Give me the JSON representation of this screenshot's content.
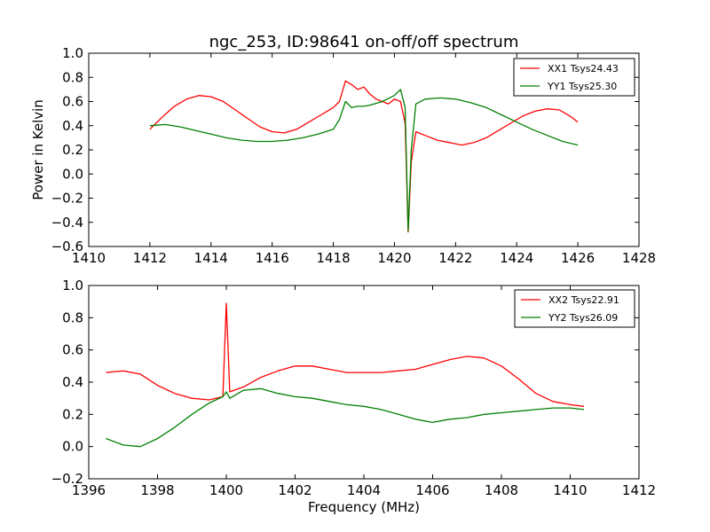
{
  "figure": {
    "title": "ngc_253, ID:98641 on-off/off spectrum",
    "ylabel": "Power in Kelvin",
    "xlabel": "Frequency (MHz)"
  },
  "chart_data": [
    {
      "type": "line",
      "title": "ngc_253, ID:98641 on-off/off spectrum",
      "xlabel": "",
      "ylabel": "Power in Kelvin",
      "xlim": [
        1410,
        1428
      ],
      "ylim": [
        -0.6,
        1.0
      ],
      "xticks": [
        "1410",
        "1412",
        "1414",
        "1416",
        "1418",
        "1420",
        "1422",
        "1424",
        "1426",
        "1428"
      ],
      "yticks": [
        "−0.6",
        "−0.4",
        "−0.2",
        "0.0",
        "0.2",
        "0.4",
        "0.6",
        "0.8",
        "1.0"
      ],
      "grid": false,
      "legend_position": "top-right",
      "series": [
        {
          "name": "XX1 Tsys24.43",
          "color": "#ff0000",
          "x": [
            1412.0,
            1412.4,
            1412.8,
            1413.2,
            1413.6,
            1414.0,
            1414.4,
            1414.8,
            1415.2,
            1415.6,
            1416.0,
            1416.4,
            1416.8,
            1417.2,
            1417.6,
            1418.0,
            1418.2,
            1418.4,
            1418.6,
            1418.8,
            1419.0,
            1419.2,
            1419.4,
            1419.6,
            1419.8,
            1420.0,
            1420.2,
            1420.35,
            1420.45,
            1420.55,
            1420.7,
            1421.0,
            1421.4,
            1421.8,
            1422.2,
            1422.6,
            1423.0,
            1423.4,
            1423.8,
            1424.2,
            1424.6,
            1425.0,
            1425.4,
            1425.8,
            1426.0
          ],
          "values": [
            0.37,
            0.47,
            0.56,
            0.62,
            0.65,
            0.64,
            0.6,
            0.53,
            0.46,
            0.39,
            0.35,
            0.34,
            0.37,
            0.43,
            0.49,
            0.55,
            0.6,
            0.77,
            0.74,
            0.7,
            0.72,
            0.66,
            0.62,
            0.6,
            0.58,
            0.62,
            0.6,
            0.42,
            -0.48,
            0.1,
            0.35,
            0.32,
            0.28,
            0.26,
            0.24,
            0.26,
            0.3,
            0.36,
            0.42,
            0.48,
            0.52,
            0.54,
            0.53,
            0.47,
            0.43
          ]
        },
        {
          "name": "YY1 Tsys25.30",
          "color": "#008000",
          "x": [
            1412.0,
            1412.5,
            1413.0,
            1413.5,
            1414.0,
            1414.5,
            1415.0,
            1415.5,
            1416.0,
            1416.5,
            1417.0,
            1417.5,
            1418.0,
            1418.2,
            1418.4,
            1418.6,
            1418.8,
            1419.0,
            1419.2,
            1419.6,
            1420.0,
            1420.2,
            1420.35,
            1420.45,
            1420.55,
            1420.7,
            1421.0,
            1421.5,
            1422.0,
            1422.5,
            1423.0,
            1423.5,
            1424.0,
            1424.5,
            1425.0,
            1425.5,
            1426.0
          ],
          "values": [
            0.4,
            0.41,
            0.39,
            0.36,
            0.33,
            0.3,
            0.28,
            0.27,
            0.27,
            0.28,
            0.3,
            0.33,
            0.37,
            0.45,
            0.6,
            0.55,
            0.56,
            0.56,
            0.57,
            0.6,
            0.65,
            0.7,
            0.55,
            -0.47,
            0.2,
            0.58,
            0.62,
            0.63,
            0.62,
            0.59,
            0.55,
            0.49,
            0.43,
            0.37,
            0.32,
            0.27,
            0.24
          ]
        }
      ]
    },
    {
      "type": "line",
      "title": "",
      "xlabel": "Frequency (MHz)",
      "ylabel": "",
      "xlim": [
        1396,
        1412
      ],
      "ylim": [
        -0.2,
        1.0
      ],
      "xticks": [
        "1396",
        "1398",
        "1400",
        "1402",
        "1404",
        "1406",
        "1408",
        "1410",
        "1412"
      ],
      "yticks": [
        "−0.2",
        "0.0",
        "0.2",
        "0.4",
        "0.6",
        "0.8",
        "1.0"
      ],
      "grid": false,
      "legend_position": "top-right",
      "series": [
        {
          "name": "XX2 Tsys22.91",
          "color": "#ff0000",
          "x": [
            1396.5,
            1397.0,
            1397.5,
            1398.0,
            1398.5,
            1399.0,
            1399.5,
            1399.9,
            1400.0,
            1400.1,
            1400.5,
            1401.0,
            1401.5,
            1402.0,
            1402.5,
            1403.0,
            1403.5,
            1404.0,
            1404.5,
            1405.0,
            1405.5,
            1406.0,
            1406.5,
            1407.0,
            1407.5,
            1408.0,
            1408.5,
            1409.0,
            1409.5,
            1410.0,
            1410.4
          ],
          "values": [
            0.46,
            0.47,
            0.45,
            0.38,
            0.33,
            0.3,
            0.29,
            0.31,
            0.89,
            0.34,
            0.37,
            0.43,
            0.47,
            0.5,
            0.5,
            0.48,
            0.46,
            0.46,
            0.46,
            0.47,
            0.48,
            0.51,
            0.54,
            0.56,
            0.55,
            0.5,
            0.42,
            0.33,
            0.28,
            0.26,
            0.25
          ]
        },
        {
          "name": "YY2 Tsys26.09",
          "color": "#008000",
          "x": [
            1396.5,
            1397.0,
            1397.5,
            1398.0,
            1398.5,
            1399.0,
            1399.5,
            1399.9,
            1400.0,
            1400.1,
            1400.5,
            1401.0,
            1401.5,
            1402.0,
            1402.5,
            1403.0,
            1403.5,
            1404.0,
            1404.5,
            1405.0,
            1405.5,
            1406.0,
            1406.5,
            1407.0,
            1407.5,
            1408.0,
            1408.5,
            1409.0,
            1409.5,
            1410.0,
            1410.4
          ],
          "values": [
            0.05,
            0.01,
            0.0,
            0.05,
            0.12,
            0.2,
            0.27,
            0.31,
            0.34,
            0.3,
            0.35,
            0.36,
            0.33,
            0.31,
            0.3,
            0.28,
            0.26,
            0.25,
            0.23,
            0.2,
            0.17,
            0.15,
            0.17,
            0.18,
            0.2,
            0.21,
            0.22,
            0.23,
            0.24,
            0.24,
            0.23
          ]
        }
      ]
    }
  ]
}
